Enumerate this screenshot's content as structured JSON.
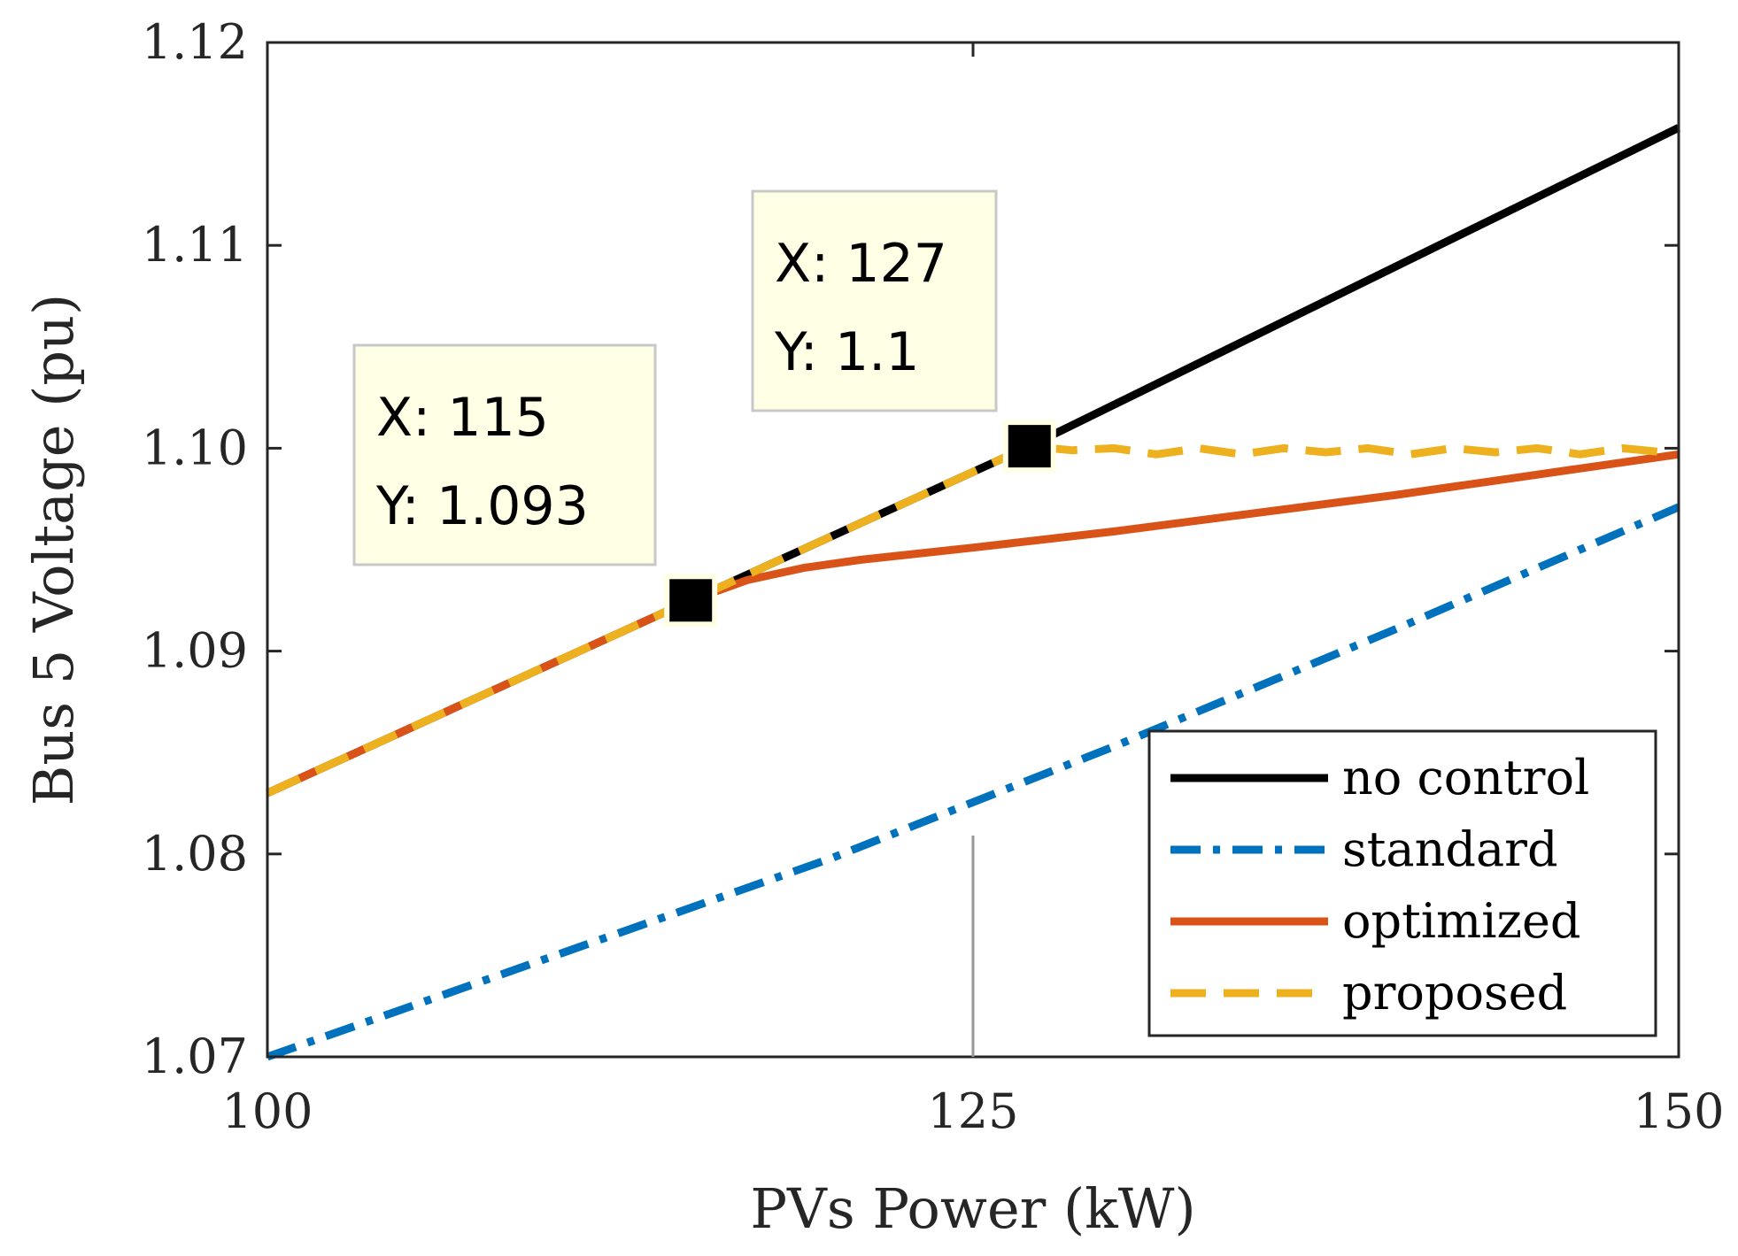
{
  "chart_data": {
    "type": "line",
    "title": "",
    "xlabel": "PVs Power (kW)",
    "ylabel": "Bus 5 Voltage (pu)",
    "xlim": [
      100,
      150
    ],
    "ylim": [
      1.07,
      1.12
    ],
    "xticks": [
      100,
      125,
      150
    ],
    "xtick_labels": [
      "100",
      "125",
      "150"
    ],
    "yticks": [
      1.07,
      1.08,
      1.09,
      1.1,
      1.11,
      1.12
    ],
    "ytick_labels": [
      "1.07",
      "1.08",
      "1.09",
      "1.10",
      "1.11",
      "1.12"
    ],
    "grid": false,
    "legend_position": "bottom-right",
    "series": [
      {
        "name": "no control",
        "color": "#000000",
        "style": "solid",
        "x": [
          100,
          115,
          127,
          150
        ],
        "y": [
          1.083,
          1.0925,
          1.1001,
          1.1158
        ]
      },
      {
        "name": "standard",
        "color": "#0072BD",
        "style": "dashdot",
        "x": [
          100,
          110,
          120,
          130,
          140,
          150
        ],
        "y": [
          1.07,
          1.0749,
          1.0798,
          1.0853,
          1.0911,
          1.0971
        ]
      },
      {
        "name": "optimized",
        "color": "#D95319",
        "style": "solid",
        "x": [
          100,
          115,
          117,
          119,
          121,
          125,
          130,
          135,
          140,
          145,
          150
        ],
        "y": [
          1.083,
          1.0925,
          1.0935,
          1.0941,
          1.0945,
          1.0951,
          1.0959,
          1.0968,
          1.0977,
          1.0987,
          1.0997
        ]
      },
      {
        "name": "proposed",
        "color": "#EDB120",
        "style": "dashed",
        "x": [
          100,
          115,
          127,
          128.5,
          130,
          131.5,
          133,
          134.5,
          136,
          137.5,
          139,
          140.5,
          142,
          143.5,
          145,
          146.5,
          148,
          149.5
        ],
        "y": [
          1.083,
          1.0925,
          1.1001,
          1.0999,
          1.1,
          1.0997,
          1.1,
          1.0997,
          1.1,
          1.0998,
          1.1,
          1.0997,
          1.1,
          1.0998,
          1.1,
          1.0997,
          1.1,
          1.0998
        ]
      }
    ],
    "annotations": [
      {
        "x": 115,
        "y": 1.0925,
        "lines": [
          "X: 115",
          "Y: 1.093"
        ]
      },
      {
        "x": 127,
        "y": 1.1001,
        "lines": [
          "X: 127",
          "Y: 1.1"
        ]
      }
    ]
  }
}
